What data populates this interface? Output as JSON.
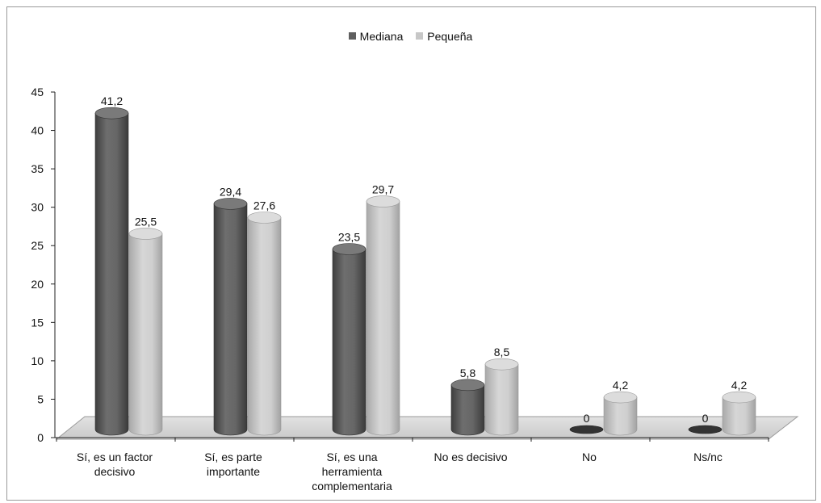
{
  "chart_data": {
    "type": "bar",
    "categories": [
      [
        "Sí, es un factor",
        "decisivo"
      ],
      [
        "Sí, es parte",
        "importante"
      ],
      [
        "Sí, es una",
        "herramienta",
        "complementaria"
      ],
      [
        "No es decisivo"
      ],
      [
        "No"
      ],
      [
        "Ns/nc"
      ]
    ],
    "series": [
      {
        "name": "Mediana",
        "values": [
          41.2,
          29.4,
          23.5,
          5.8,
          0,
          0
        ],
        "labels": [
          "41,2",
          "29,4",
          "23,5",
          "5,8",
          "0",
          "0"
        ]
      },
      {
        "name": "Pequeña",
        "values": [
          25.5,
          27.6,
          29.7,
          8.5,
          4.2,
          4.2
        ],
        "labels": [
          "25,5",
          "27,6",
          "29,7",
          "8,5",
          "4,2",
          "4,2"
        ]
      }
    ],
    "yticks": [
      "0",
      "5",
      "10",
      "15",
      "20",
      "25",
      "30",
      "35",
      "40",
      "45"
    ],
    "ylim": [
      0,
      45
    ],
    "legend_position": "top-center",
    "colors": {
      "Mediana": "#5f5f5f",
      "Pequeña": "#c7c7c7"
    },
    "xlabel": "",
    "ylabel": ""
  }
}
